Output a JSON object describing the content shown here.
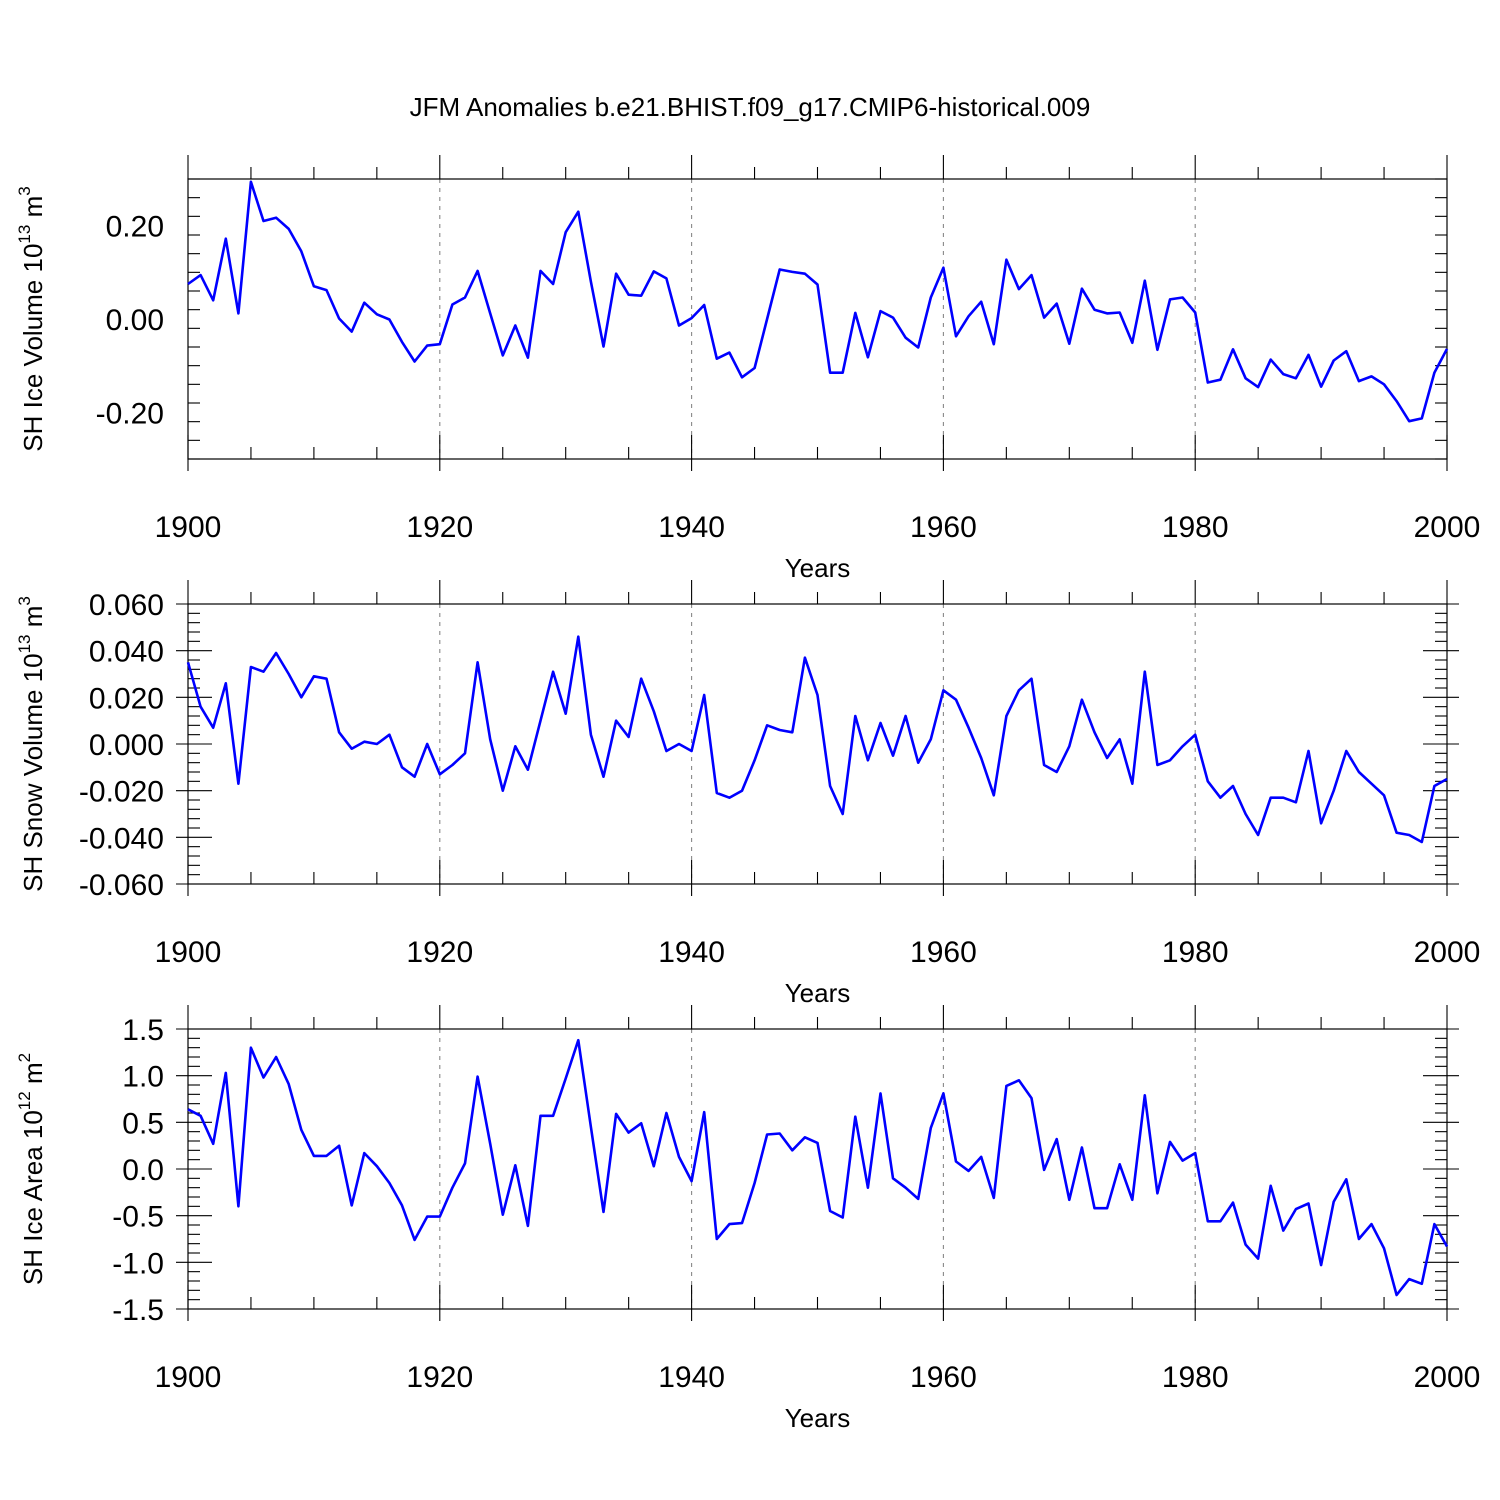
{
  "chart_data": {
    "type": "line",
    "title": "JFM Anomalies b.e21.BHIST.f09_g17.CMIP6-historical.009",
    "panels": [
      {
        "id": "ice-volume",
        "ylabel": {
          "base": "SH Ice Volume 10",
          "sup": "13",
          "unit": " m",
          "unitsup": "3"
        },
        "xlabel": "Years",
        "xlim": [
          1900,
          2000
        ],
        "xticks": [
          1900,
          1920,
          1940,
          1960,
          1980,
          2000
        ],
        "xtick_labels": [
          "1900",
          "1920",
          "1940",
          "1960",
          "1980",
          "2000"
        ],
        "ylim": [
          -0.3,
          0.3
        ],
        "yticks": [
          -0.2,
          0.0,
          0.2
        ],
        "ytick_labels": [
          "-0.20",
          "0.00",
          "0.20"
        ],
        "grid_x": [
          1920,
          1940,
          1960,
          1980
        ],
        "x_start": 1900,
        "values": [
          0.075,
          0.094,
          0.04,
          0.172,
          0.012,
          0.294,
          0.21,
          0.217,
          0.193,
          0.145,
          0.07,
          0.062,
          0.001,
          -0.027,
          0.035,
          0.01,
          -0.001,
          -0.049,
          -0.091,
          -0.057,
          -0.054,
          0.031,
          0.046,
          0.103,
          0.012,
          -0.078,
          -0.014,
          -0.083,
          0.103,
          0.075,
          0.186,
          0.23,
          0.08,
          -0.059,
          0.097,
          0.052,
          0.05,
          0.102,
          0.087,
          -0.014,
          0.002,
          0.03,
          -0.085,
          -0.072,
          -0.125,
          -0.105,
          0.0,
          0.106,
          0.101,
          0.097,
          0.074,
          -0.115,
          -0.115,
          0.013,
          -0.082,
          0.017,
          0.003,
          -0.04,
          -0.061,
          0.046,
          0.11,
          -0.037,
          0.006,
          0.037,
          -0.054,
          0.127,
          0.064,
          0.094,
          0.003,
          0.033,
          -0.053,
          0.065,
          0.02,
          0.012,
          0.014,
          -0.051,
          0.082,
          -0.066,
          0.042,
          0.046,
          0.014,
          -0.136,
          -0.13,
          -0.065,
          -0.127,
          -0.146,
          -0.087,
          -0.118,
          -0.127,
          -0.077,
          -0.145,
          -0.089,
          -0.069,
          -0.133,
          -0.123,
          -0.14,
          -0.176,
          -0.219,
          -0.213,
          -0.115,
          -0.064
        ]
      },
      {
        "id": "snow-volume",
        "ylabel": {
          "base": "SH Snow Volume 10",
          "sup": "13",
          "unit": " m",
          "unitsup": "3"
        },
        "xlabel": "Years",
        "xlim": [
          1900,
          2000
        ],
        "xticks": [
          1900,
          1920,
          1940,
          1960,
          1980,
          2000
        ],
        "xtick_labels": [
          "1900",
          "1920",
          "1940",
          "1960",
          "1980",
          "2000"
        ],
        "ylim": [
          -0.06,
          0.06
        ],
        "yticks": [
          -0.06,
          -0.04,
          -0.02,
          0.0,
          0.02,
          0.04,
          0.06
        ],
        "ytick_labels": [
          "-0.060",
          "-0.040",
          "-0.020",
          "0.000",
          "0.020",
          "0.040",
          "0.060"
        ],
        "grid_x": [
          1920,
          1940,
          1960,
          1980
        ],
        "x_start": 1900,
        "values": [
          0.035,
          0.016,
          0.007,
          0.026,
          -0.017,
          0.033,
          0.031,
          0.039,
          0.03,
          0.02,
          0.029,
          0.028,
          0.005,
          -0.002,
          0.001,
          0.0,
          0.004,
          -0.01,
          -0.014,
          0.0,
          -0.013,
          -0.009,
          -0.004,
          0.035,
          0.002,
          -0.02,
          -0.001,
          -0.011,
          0.01,
          0.031,
          0.013,
          0.046,
          0.004,
          -0.014,
          0.01,
          0.003,
          0.028,
          0.014,
          -0.003,
          0.0,
          -0.003,
          0.021,
          -0.021,
          -0.023,
          -0.02,
          -0.007,
          0.008,
          0.006,
          0.005,
          0.037,
          0.021,
          -0.018,
          -0.03,
          0.012,
          -0.007,
          0.009,
          -0.005,
          0.012,
          -0.008,
          0.002,
          0.023,
          0.019,
          0.007,
          -0.006,
          -0.022,
          0.012,
          0.023,
          0.028,
          -0.009,
          -0.012,
          -0.001,
          0.019,
          0.005,
          -0.006,
          0.002,
          -0.017,
          0.031,
          -0.009,
          -0.007,
          -0.001,
          0.004,
          -0.016,
          -0.023,
          -0.018,
          -0.03,
          -0.039,
          -0.023,
          -0.023,
          -0.025,
          -0.003,
          -0.034,
          -0.02,
          -0.003,
          -0.012,
          -0.017,
          -0.022,
          -0.038,
          -0.039,
          -0.042,
          -0.018,
          -0.015
        ]
      },
      {
        "id": "ice-area",
        "ylabel": {
          "base": "SH Ice Area 10",
          "sup": "12",
          "unit": " m",
          "unitsup": "2"
        },
        "xlabel": "Years",
        "xlim": [
          1900,
          2000
        ],
        "xticks": [
          1900,
          1920,
          1940,
          1960,
          1980,
          2000
        ],
        "xtick_labels": [
          "1900",
          "1920",
          "1940",
          "1960",
          "1980",
          "2000"
        ],
        "ylim": [
          -1.5,
          1.5
        ],
        "yticks": [
          -1.5,
          -1.0,
          -0.5,
          0.0,
          0.5,
          1.0,
          1.5
        ],
        "ytick_labels": [
          "-1.5",
          "-1.0",
          "-0.5",
          "0.0",
          "0.5",
          "1.0",
          "1.5"
        ],
        "grid_x": [
          1920,
          1940,
          1960,
          1980
        ],
        "x_start": 1900,
        "values": [
          0.64,
          0.57,
          0.27,
          1.03,
          -0.4,
          1.3,
          0.98,
          1.2,
          0.91,
          0.42,
          0.14,
          0.14,
          0.25,
          -0.39,
          0.17,
          0.03,
          -0.15,
          -0.39,
          -0.76,
          -0.51,
          -0.51,
          -0.2,
          0.06,
          0.99,
          0.27,
          -0.49,
          0.04,
          -0.61,
          0.57,
          0.57,
          0.97,
          1.38,
          0.45,
          -0.46,
          0.59,
          0.39,
          0.49,
          0.03,
          0.6,
          0.13,
          -0.13,
          0.61,
          -0.75,
          -0.59,
          -0.58,
          -0.15,
          0.37,
          0.38,
          0.2,
          0.34,
          0.28,
          -0.45,
          -0.52,
          0.56,
          -0.2,
          0.81,
          -0.1,
          -0.2,
          -0.32,
          0.44,
          0.81,
          0.08,
          -0.02,
          0.13,
          -0.31,
          0.89,
          0.95,
          0.76,
          -0.01,
          0.32,
          -0.33,
          0.23,
          -0.42,
          -0.42,
          0.05,
          -0.33,
          0.79,
          -0.26,
          0.29,
          0.09,
          0.17,
          -0.56,
          -0.56,
          -0.36,
          -0.81,
          -0.96,
          -0.18,
          -0.66,
          -0.43,
          -0.37,
          -1.03,
          -0.35,
          -0.11,
          -0.75,
          -0.59,
          -0.85,
          -1.35,
          -1.18,
          -1.23,
          -0.59,
          -0.83
        ]
      }
    ]
  }
}
